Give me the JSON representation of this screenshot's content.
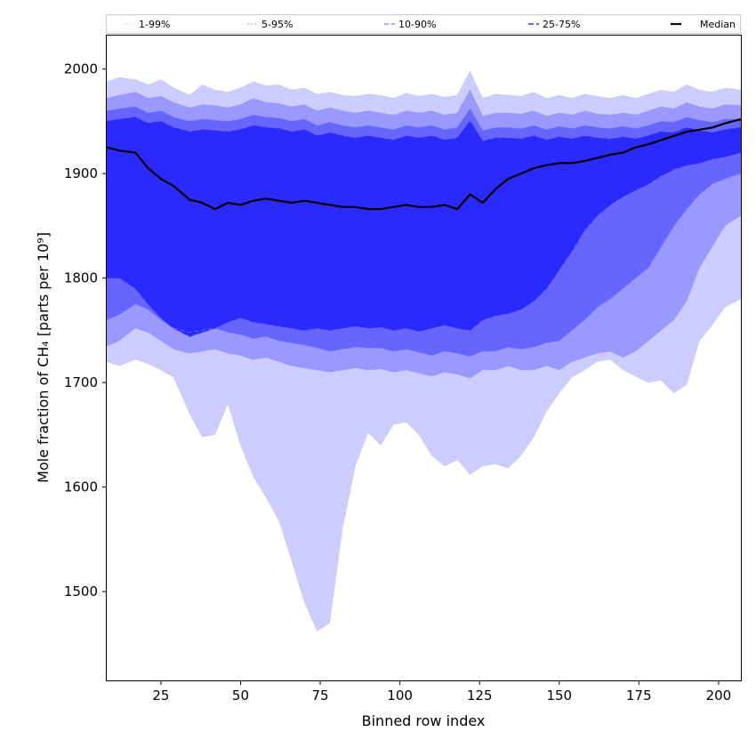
{
  "chart_data": {
    "type": "area",
    "xlabel": "Binned row index",
    "ylabel": "Mole fraction of CH₄ [parts per 10⁹]",
    "xlim": [
      8,
      207
    ],
    "ylim": [
      1415,
      2032
    ],
    "xticks": [
      25,
      50,
      75,
      100,
      125,
      150,
      175,
      200
    ],
    "yticks": [
      1500,
      1600,
      1700,
      1800,
      1900,
      2000
    ],
    "legend_position": "top",
    "x": [
      8,
      12,
      17,
      21,
      25,
      29,
      34,
      38,
      42,
      46,
      50,
      54,
      58,
      62,
      66,
      70,
      74,
      78,
      82,
      86,
      90,
      94,
      98,
      102,
      106,
      110,
      114,
      118,
      122,
      126,
      130,
      134,
      138,
      142,
      146,
      150,
      154,
      158,
      162,
      166,
      170,
      174,
      178,
      182,
      186,
      190,
      194,
      198,
      202,
      207
    ],
    "bands": [
      {
        "name": "1-99%",
        "color": "#ccccff",
        "lower": [
          1720,
          1716,
          1722,
          1718,
          1712,
          1705,
          1670,
          1648,
          1650,
          1680,
          1640,
          1610,
          1590,
          1568,
          1530,
          1490,
          1462,
          1470,
          1560,
          1620,
          1652,
          1640,
          1660,
          1662,
          1650,
          1630,
          1620,
          1626,
          1612,
          1620,
          1622,
          1618,
          1630,
          1648,
          1672,
          1690,
          1705,
          1712,
          1720,
          1722,
          1712,
          1706,
          1700,
          1702,
          1690,
          1698,
          1740,
          1755,
          1772,
          1780
        ],
        "upper": [
          1988,
          1992,
          1990,
          1985,
          1990,
          1982,
          1975,
          1985,
          1980,
          1978,
          1982,
          1988,
          1984,
          1985,
          1980,
          1982,
          1976,
          1978,
          1975,
          1974,
          1976,
          1975,
          1972,
          1977,
          1974,
          1976,
          1973,
          1975,
          1998,
          1972,
          1976,
          1975,
          1974,
          1978,
          1972,
          1975,
          1972,
          1976,
          1974,
          1972,
          1975,
          1972,
          1976,
          1980,
          1978,
          1985,
          1980,
          1978,
          1982,
          1980
        ]
      },
      {
        "name": "5-95%",
        "color": "#9999ff",
        "lower": [
          1735,
          1740,
          1752,
          1748,
          1740,
          1732,
          1728,
          1730,
          1732,
          1728,
          1726,
          1722,
          1724,
          1720,
          1716,
          1714,
          1712,
          1710,
          1712,
          1714,
          1712,
          1713,
          1710,
          1712,
          1709,
          1706,
          1710,
          1708,
          1704,
          1712,
          1712,
          1716,
          1712,
          1712,
          1716,
          1712,
          1720,
          1724,
          1728,
          1730,
          1724,
          1730,
          1740,
          1750,
          1760,
          1778,
          1810,
          1830,
          1850,
          1860
        ],
        "upper": [
          1972,
          1975,
          1978,
          1972,
          1974,
          1968,
          1963,
          1966,
          1965,
          1963,
          1966,
          1972,
          1968,
          1967,
          1964,
          1966,
          1960,
          1963,
          1960,
          1958,
          1960,
          1958,
          1956,
          1960,
          1958,
          1960,
          1956,
          1958,
          1980,
          1955,
          1958,
          1958,
          1957,
          1960,
          1955,
          1958,
          1956,
          1960,
          1957,
          1956,
          1958,
          1956,
          1960,
          1964,
          1962,
          1968,
          1964,
          1962,
          1966,
          1965
        ]
      },
      {
        "name": "10-90%",
        "color": "#6666ff",
        "lower": [
          1760,
          1765,
          1775,
          1770,
          1760,
          1752,
          1748,
          1750,
          1752,
          1748,
          1746,
          1742,
          1744,
          1740,
          1738,
          1736,
          1733,
          1730,
          1732,
          1734,
          1733,
          1733,
          1730,
          1732,
          1729,
          1726,
          1730,
          1728,
          1725,
          1730,
          1730,
          1734,
          1732,
          1734,
          1738,
          1740,
          1750,
          1760,
          1772,
          1780,
          1790,
          1800,
          1810,
          1830,
          1850,
          1866,
          1880,
          1890,
          1895,
          1900
        ],
        "upper": [
          1960,
          1962,
          1964,
          1958,
          1960,
          1954,
          1950,
          1952,
          1951,
          1950,
          1952,
          1956,
          1954,
          1953,
          1950,
          1952,
          1946,
          1949,
          1946,
          1944,
          1946,
          1944,
          1942,
          1946,
          1944,
          1946,
          1942,
          1944,
          1962,
          1941,
          1944,
          1944,
          1943,
          1946,
          1942,
          1945,
          1943,
          1946,
          1944,
          1943,
          1945,
          1943,
          1946,
          1950,
          1949,
          1954,
          1951,
          1949,
          1952,
          1952
        ]
      },
      {
        "name": "25-75%",
        "color": "#2a2aff",
        "lower": [
          1800,
          1800,
          1790,
          1775,
          1762,
          1752,
          1744,
          1748,
          1752,
          1758,
          1762,
          1758,
          1756,
          1754,
          1752,
          1750,
          1752,
          1750,
          1752,
          1754,
          1752,
          1753,
          1750,
          1752,
          1749,
          1752,
          1755,
          1752,
          1750,
          1760,
          1764,
          1766,
          1770,
          1778,
          1790,
          1808,
          1826,
          1846,
          1860,
          1870,
          1878,
          1884,
          1890,
          1898,
          1904,
          1908,
          1910,
          1914,
          1916,
          1920
        ],
        "upper": [
          1950,
          1952,
          1954,
          1948,
          1950,
          1944,
          1940,
          1942,
          1941,
          1940,
          1942,
          1946,
          1944,
          1943,
          1940,
          1942,
          1936,
          1939,
          1936,
          1934,
          1936,
          1934,
          1932,
          1936,
          1934,
          1936,
          1932,
          1934,
          1950,
          1931,
          1934,
          1934,
          1933,
          1936,
          1932,
          1935,
          1933,
          1936,
          1934,
          1933,
          1935,
          1933,
          1936,
          1940,
          1939,
          1944,
          1941,
          1939,
          1942,
          1944
        ]
      }
    ],
    "series": [
      {
        "name": "Median",
        "color": "#000000",
        "values": [
          1925,
          1922,
          1920,
          1905,
          1895,
          1888,
          1875,
          1872,
          1866,
          1872,
          1870,
          1874,
          1876,
          1874,
          1872,
          1874,
          1872,
          1870,
          1868,
          1868,
          1866,
          1866,
          1868,
          1870,
          1868,
          1868,
          1870,
          1866,
          1880,
          1872,
          1885,
          1895,
          1900,
          1905,
          1908,
          1910,
          1910,
          1912,
          1915,
          1918,
          1920,
          1925,
          1928,
          1932,
          1936,
          1940,
          1942,
          1944,
          1948,
          1952
        ]
      }
    ],
    "legend": [
      {
        "label": "1-99%",
        "color": "#aaaaaa",
        "dash": "1,2",
        "width": 0.8
      },
      {
        "label": "5-95%",
        "color": "#8888ff",
        "dash": "2,2",
        "width": 0.8
      },
      {
        "label": "10-90%",
        "color": "#7777ff",
        "dash": "5,3",
        "width": 1.2
      },
      {
        "label": "25-75%",
        "color": "#3333ee",
        "dash": "6,3",
        "width": 1.4
      },
      {
        "label": "Median",
        "color": "#000000",
        "dash": "",
        "width": 2.2
      }
    ]
  }
}
